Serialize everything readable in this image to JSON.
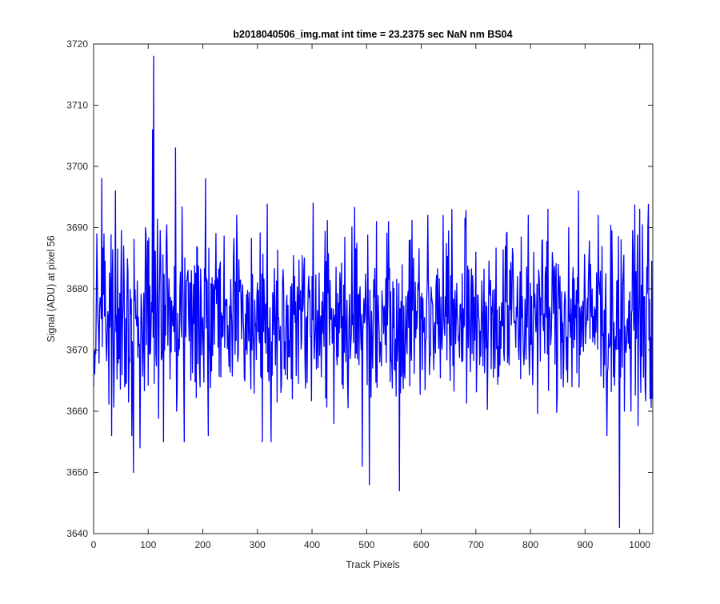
{
  "chart_data": {
    "type": "line",
    "title": "b2018040506_img.mat int time = 23.2375 sec  NaN nm BS04",
    "xlabel": "Track Pixels",
    "ylabel": "Signal (ADU) at pixel 56",
    "xlim": [
      0,
      1024
    ],
    "ylim": [
      3640,
      3720
    ],
    "xticks": [
      0,
      100,
      200,
      300,
      400,
      500,
      600,
      700,
      800,
      900,
      1000
    ],
    "yticks": [
      3640,
      3650,
      3660,
      3670,
      3680,
      3690,
      3700,
      3710,
      3720
    ],
    "grid": false,
    "line_color": "#0000ff",
    "series": [
      {
        "n_points": 1024,
        "baseline": 3675.5,
        "typical_range": [
          3655,
          3698
        ],
        "x": [
          0,
          15,
          33,
          40,
          55,
          70,
          73,
          85,
          95,
          108,
          110,
          112,
          128,
          133,
          150,
          152,
          166,
          205,
          210,
          262,
          309,
          325,
          402,
          440,
          492,
          505,
          518,
          540,
          560,
          580,
          612,
          640,
          700,
          756,
          796,
          832,
          870,
          888,
          924,
          940,
          963,
          966,
          972,
          984,
          1000,
          1015,
          1023
        ],
        "y": [
          3664,
          3698,
          3656,
          3696,
          3687,
          3656,
          3650,
          3654,
          3690,
          3706,
          3718,
          3686,
          3655,
          3688,
          3703,
          3660,
          3655,
          3698,
          3656,
          3692,
          3655,
          3655,
          3694,
          3658,
          3651,
          3648,
          3691,
          3691,
          3647,
          3688,
          3692,
          3692,
          3686,
          3689,
          3692,
          3693,
          3690,
          3696,
          3692,
          3656,
          3641,
          3688,
          3660,
          3660,
          3693,
          3690,
          3662
        ]
      }
    ]
  }
}
